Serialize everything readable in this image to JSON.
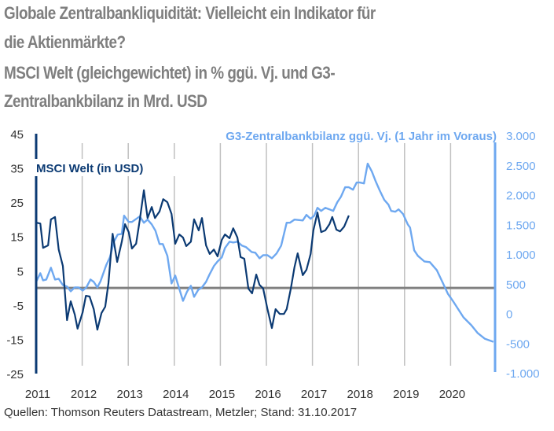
{
  "title": {
    "line1": "Globale Zentralbankliquidität: Vielleicht ein Indikator für",
    "line2": "die Aktienmärkte?",
    "subtitle_line1": "MSCI Welt (gleichgewichtet) in % ggü. Vj. und G3-",
    "subtitle_line2": "Zentralbankbilanz in Mrd. USD"
  },
  "source": "Quellen: Thomson Reuters Datastream, Metzler; Stand: 31.10.2017",
  "colors": {
    "msci": "#0b3a73",
    "g3": "#6ea8f0",
    "title": "#7f7f7f",
    "grid": "#c0c0c0",
    "zero_line": "#808080",
    "tick_text": "#333333"
  },
  "chart_data": {
    "type": "line",
    "title": "Globale Zentralbankliquidität: Vielleicht ein Indikator für die Aktienmärkte?",
    "subtitle": "MSCI Welt (gleichgewichtet) in % ggü. Vj. und G3-Zentralbankbilanz in Mrd. USD",
    "xlabel": "",
    "x_ticks": [
      "2011",
      "2012",
      "2013",
      "2014",
      "2015",
      "2016",
      "2017",
      "2018",
      "2019",
      "2020"
    ],
    "xlim": [
      2011,
      2020.92
    ],
    "y_left": {
      "label": "",
      "ticks": [
        "45",
        "35",
        "25",
        "15",
        "5",
        "-5",
        "-15",
        "-25"
      ],
      "ylim": [
        -25,
        45
      ]
    },
    "y_right": {
      "label": "",
      "ticks": [
        "3.000",
        "2.500",
        "2.000",
        "1.500",
        "1.000",
        "500",
        "0",
        "-500",
        "-1.000"
      ],
      "ylim": [
        -1000,
        3000
      ]
    },
    "reference_line": {
      "axis": "left",
      "value": 0
    },
    "grid": "vertical at years",
    "series": [
      {
        "name": "MSCI Welt (in USD)",
        "axis": "left",
        "legend_position": "top-left",
        "x": [
          2011.02,
          2011.09,
          2011.15,
          2011.26,
          2011.32,
          2011.41,
          2011.49,
          2011.58,
          2011.67,
          2011.75,
          2011.84,
          2011.9,
          2012.01,
          2012.08,
          2012.16,
          2012.25,
          2012.33,
          2012.42,
          2012.5,
          2012.57,
          2012.66,
          2012.76,
          2012.86,
          2012.93,
          2013.01,
          2013.08,
          2013.17,
          2013.25,
          2013.34,
          2013.42,
          2013.51,
          2013.58,
          2013.68,
          2013.76,
          2013.85,
          2013.94,
          2014.02,
          2014.11,
          2014.19,
          2014.26,
          2014.36,
          2014.43,
          2014.53,
          2014.6,
          2014.69,
          2014.77,
          2014.86,
          2014.94,
          2015.03,
          2015.1,
          2015.2,
          2015.28,
          2015.37,
          2015.44,
          2015.52,
          2015.61,
          2015.69,
          2015.78,
          2015.85,
          2015.93,
          2016.02,
          2016.12,
          2016.2,
          2016.29,
          2016.38,
          2016.44,
          2016.53,
          2016.61,
          2016.68,
          2016.79,
          2016.87,
          2016.96,
          2017.02,
          2017.11,
          2017.19,
          2017.28,
          2017.37,
          2017.43,
          2017.52,
          2017.6,
          2017.69,
          2017.79
        ],
        "values": [
          19.0,
          18.8,
          11.7,
          12.4,
          20.0,
          20.7,
          11.2,
          6.4,
          -9.4,
          -3.9,
          -7.8,
          -11.9,
          -7.1,
          -2.3,
          -2.5,
          -6.2,
          -12.2,
          -7.3,
          -5.5,
          1.4,
          15.8,
          7.6,
          13.5,
          18.6,
          16.3,
          11.5,
          12.9,
          19.7,
          28.5,
          20.4,
          23.6,
          20.4,
          22.3,
          25.9,
          25.0,
          21.6,
          12.9,
          15.6,
          14.7,
          12.2,
          13.5,
          20.0,
          16.8,
          20.4,
          12.4,
          9.9,
          11.2,
          9.2,
          14.0,
          15.6,
          14.5,
          17.4,
          14.7,
          9.0,
          8.5,
          -0.2,
          -1.6,
          3.9,
          0.9,
          -0.2,
          -6.0,
          -11.7,
          -6.2,
          -7.6,
          -7.6,
          -6.2,
          -0.2,
          6.0,
          10.1,
          3.7,
          5.3,
          9.9,
          16.8,
          22.0,
          16.3,
          16.8,
          18.6,
          20.7,
          17.0,
          16.5,
          17.9,
          21.1
        ]
      },
      {
        "name": "G3-Zentralbankbilanz ggü. Vj. (1 Jahr im Voraus)",
        "axis": "right",
        "legend_position": "top-right",
        "x": [
          2011.0,
          2011.09,
          2011.15,
          2011.22,
          2011.32,
          2011.41,
          2011.49,
          2011.58,
          2011.67,
          2011.75,
          2011.84,
          2011.92,
          2012.01,
          2012.09,
          2012.18,
          2012.25,
          2012.33,
          2012.4,
          2012.52,
          2012.6,
          2012.69,
          2012.77,
          2012.86,
          2012.91,
          2013.01,
          2013.08,
          2013.25,
          2013.34,
          2013.42,
          2013.51,
          2013.59,
          2013.68,
          2013.75,
          2013.85,
          2013.94,
          2014.02,
          2014.11,
          2014.19,
          2014.28,
          2014.36,
          2014.43,
          2014.52,
          2014.6,
          2014.69,
          2014.77,
          2014.86,
          2014.94,
          2015.03,
          2015.1,
          2015.2,
          2015.28,
          2015.37,
          2015.47,
          2015.56,
          2015.68,
          2015.76,
          2015.85,
          2015.93,
          2016.02,
          2016.12,
          2016.22,
          2016.32,
          2016.44,
          2016.51,
          2016.61,
          2016.79,
          2016.87,
          2016.96,
          2017.04,
          2017.11,
          2017.19,
          2017.28,
          2017.37,
          2017.45,
          2017.54,
          2017.62,
          2017.71,
          2017.79,
          2017.88,
          2017.96,
          2018.03,
          2018.12,
          2018.2,
          2018.29,
          2018.37,
          2018.46,
          2018.56,
          2018.65,
          2018.71,
          2018.8,
          2018.87,
          2018.97,
          2019.07,
          2019.12,
          2019.21,
          2019.29,
          2019.43,
          2019.55,
          2019.7,
          2019.82,
          2019.94,
          2020.06,
          2020.28,
          2020.45,
          2020.59,
          2020.74,
          2020.93
        ],
        "values": [
          531,
          677,
          558,
          571,
          770,
          571,
          584,
          478,
          451,
          372,
          438,
          438,
          385,
          438,
          571,
          531,
          438,
          544,
          810,
          943,
          1208,
          1327,
          1341,
          1646,
          1540,
          1540,
          1633,
          1527,
          1580,
          1500,
          1394,
          1168,
          1168,
          969,
          504,
          637,
          412,
          212,
          372,
          465,
          279,
          398,
          438,
          531,
          664,
          797,
          876,
          943,
          1102,
          1208,
          1195,
          1208,
          1142,
          1115,
          1035,
          1022,
          929,
          982,
          982,
          929,
          1009,
          1142,
          1527,
          1527,
          1580,
          1566,
          1659,
          1593,
          1646,
          1779,
          1726,
          1779,
          1752,
          1726,
          1872,
          1965,
          2124,
          2124,
          2084,
          2204,
          2204,
          2190,
          2522,
          2389,
          2230,
          2071,
          1912,
          1832,
          1726,
          1712,
          1752,
          1673,
          1500,
          1447,
          1062,
          969,
          876,
          863,
          730,
          531,
          332,
          199,
          -66,
          -199,
          -332,
          -425,
          -478
        ]
      }
    ]
  }
}
